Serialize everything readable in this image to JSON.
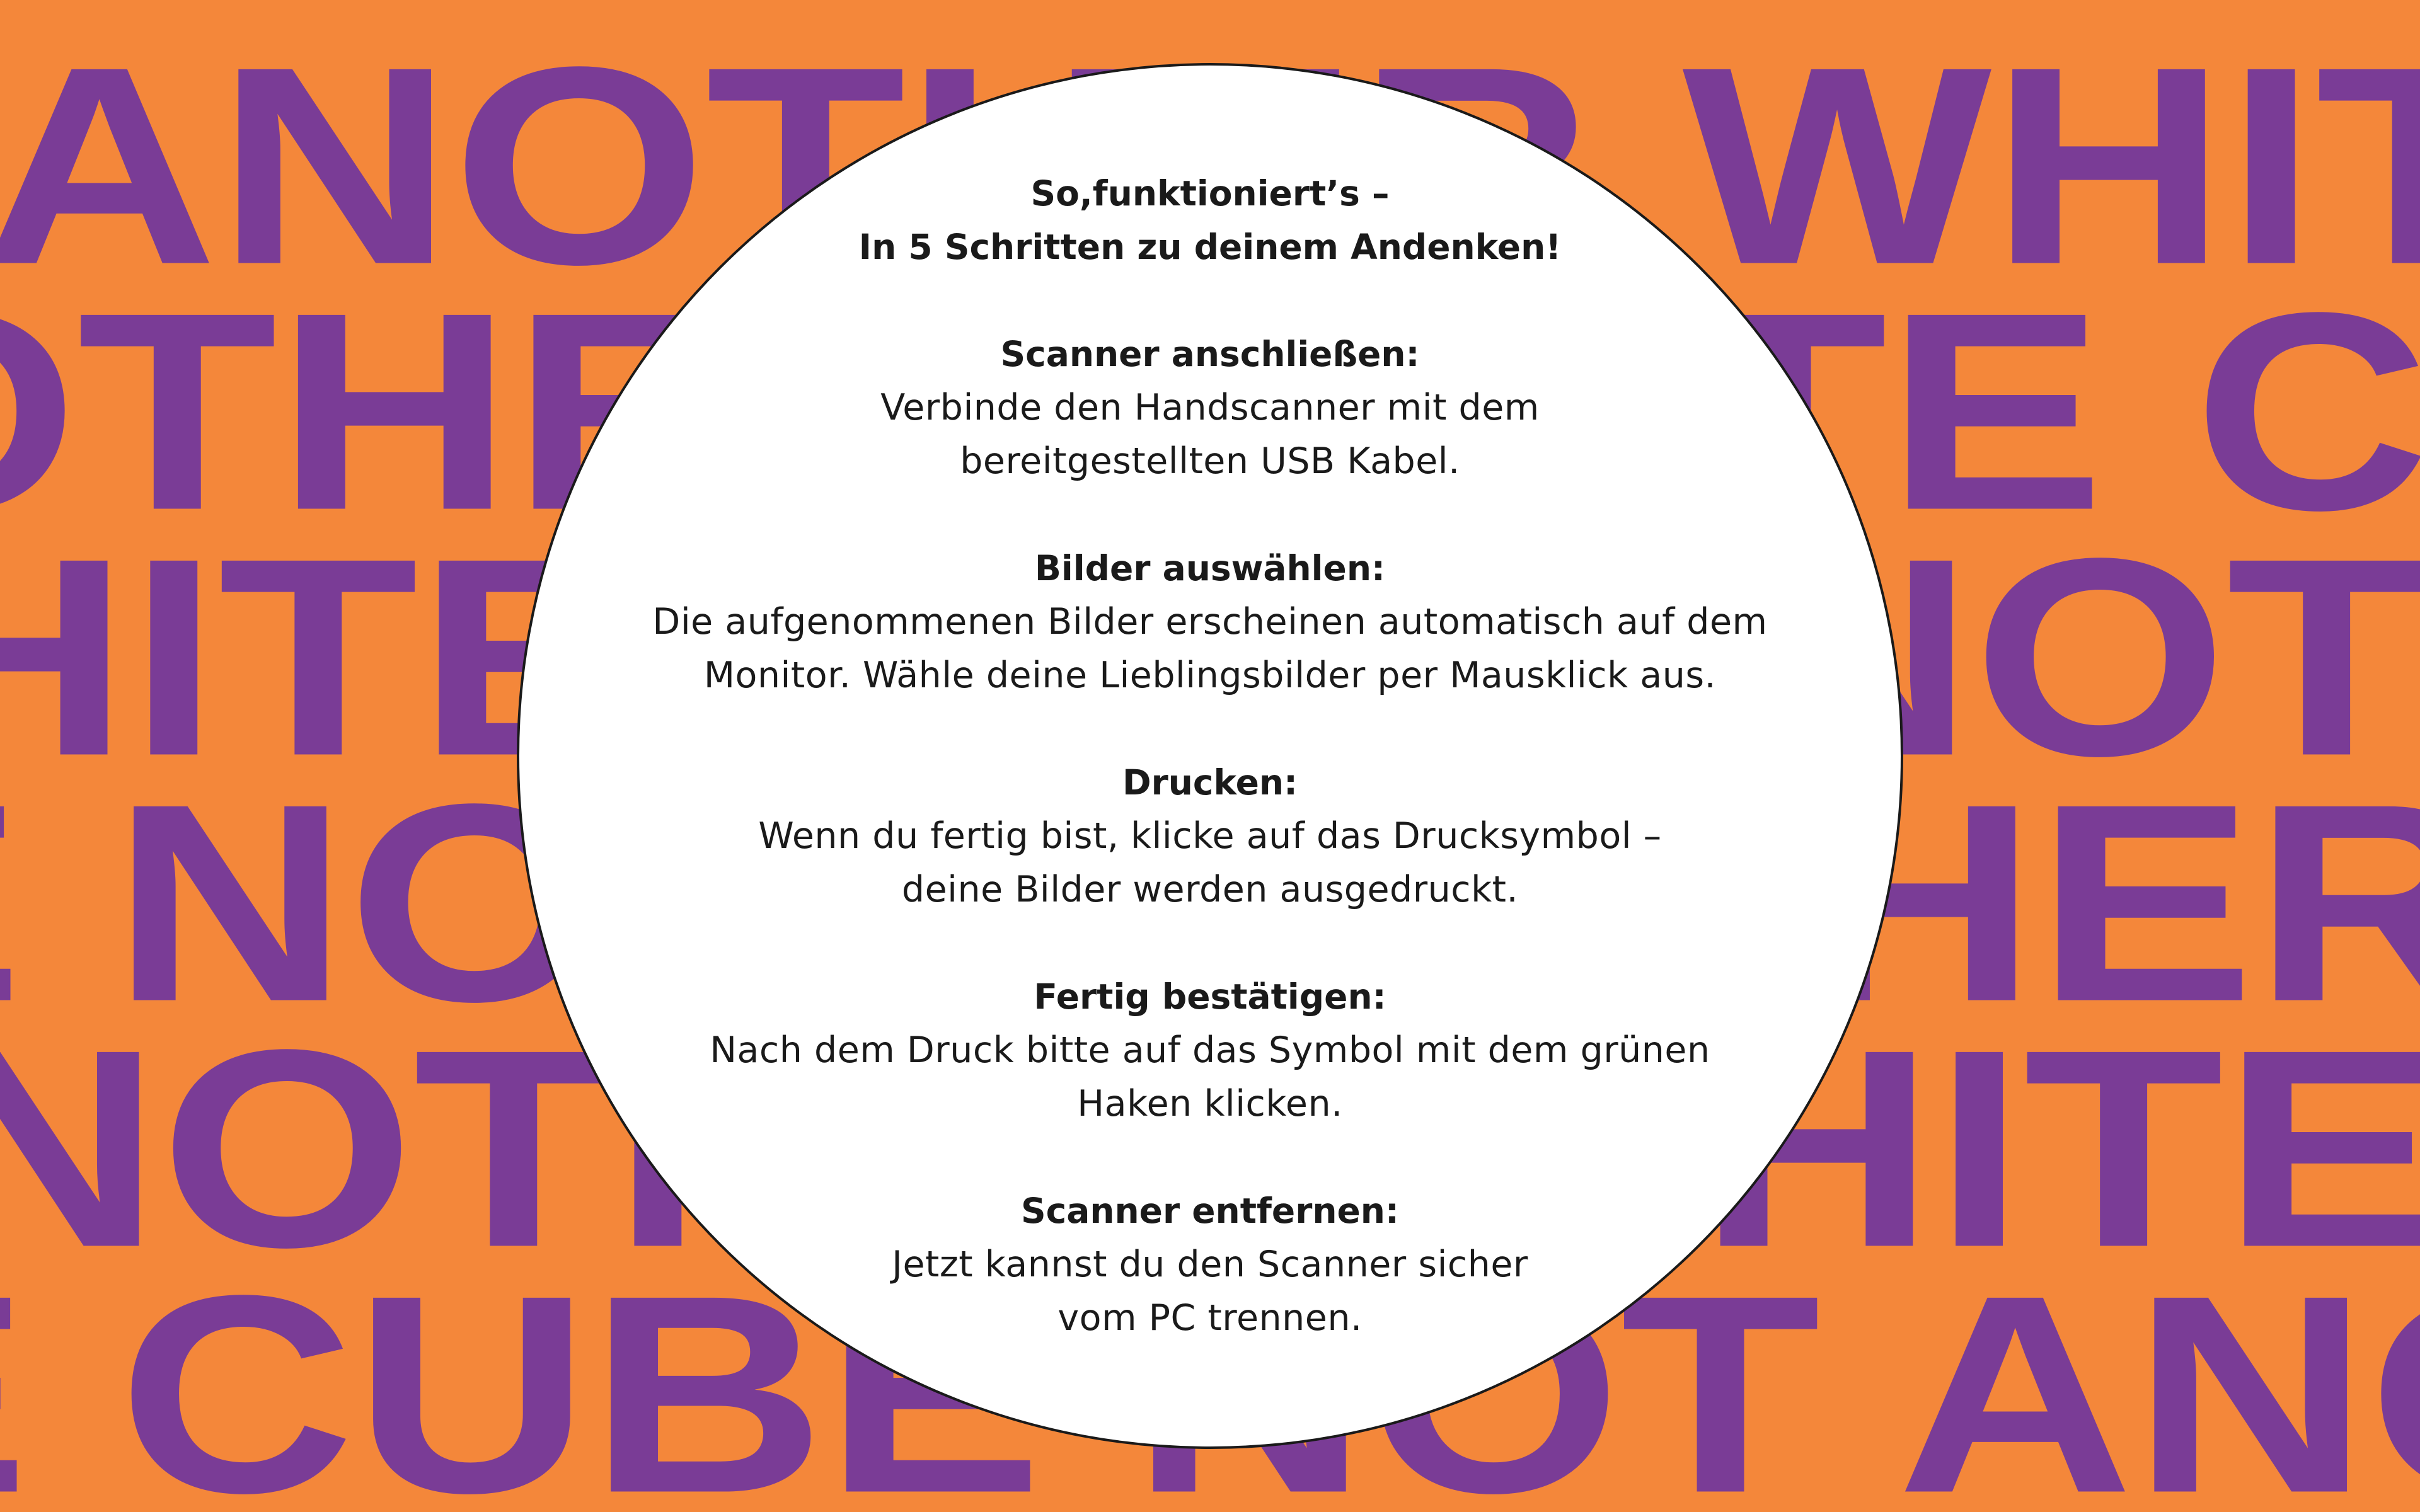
{
  "background": {
    "color": "#f4873a",
    "text_color": "#7a3c96",
    "rows": [
      "ANOTHER WHITE CUBE NOT ANOTHER WHITE CUBE",
      "OTHER WHITE CUBE NOT ANOTHER WHITE CUBE",
      "HITE CUBE NOT ANOTHER WHITE CUBE NOT AN",
      "E NOT ANOTHER WHITE CUBE NOT ANOTHER WHITE",
      "NOTHER WHITE CUBE NOT ANOTHER WHITE CUBE",
      "E CUBE NOT ANOTHER WHITE CUBE NOT ANOTHER"
    ]
  },
  "circle": {
    "color": "#ffffff",
    "border_color": "#1a1a1a"
  },
  "intro": {
    "line1": "So,funktioniert’s –",
    "line2": "In 5 Schritten zu deinem Andenken!"
  },
  "steps": [
    {
      "title": "Scanner anschließen:",
      "lines": [
        "Verbinde den Handscanner mit dem",
        "bereitgestellten USB Kabel."
      ]
    },
    {
      "title": "Bilder auswählen:",
      "lines": [
        "Die aufgenommenen Bilder erscheinen automatisch auf dem",
        "Monitor. Wähle deine Lieblingsbilder per Mausklick aus."
      ]
    },
    {
      "title": "Drucken:",
      "lines": [
        "Wenn du fertig bist, klicke auf das Drucksymbol –",
        "deine Bilder werden ausgedruckt."
      ]
    },
    {
      "title": "Fertig bestätigen:",
      "lines": [
        "Nach dem Druck bitte auf das Symbol mit dem grünen",
        "Haken klicken."
      ]
    },
    {
      "title": "Scanner entfernen:",
      "lines": [
        "Jetzt kannst du den Scanner sicher",
        "vom PC trennen."
      ]
    }
  ]
}
